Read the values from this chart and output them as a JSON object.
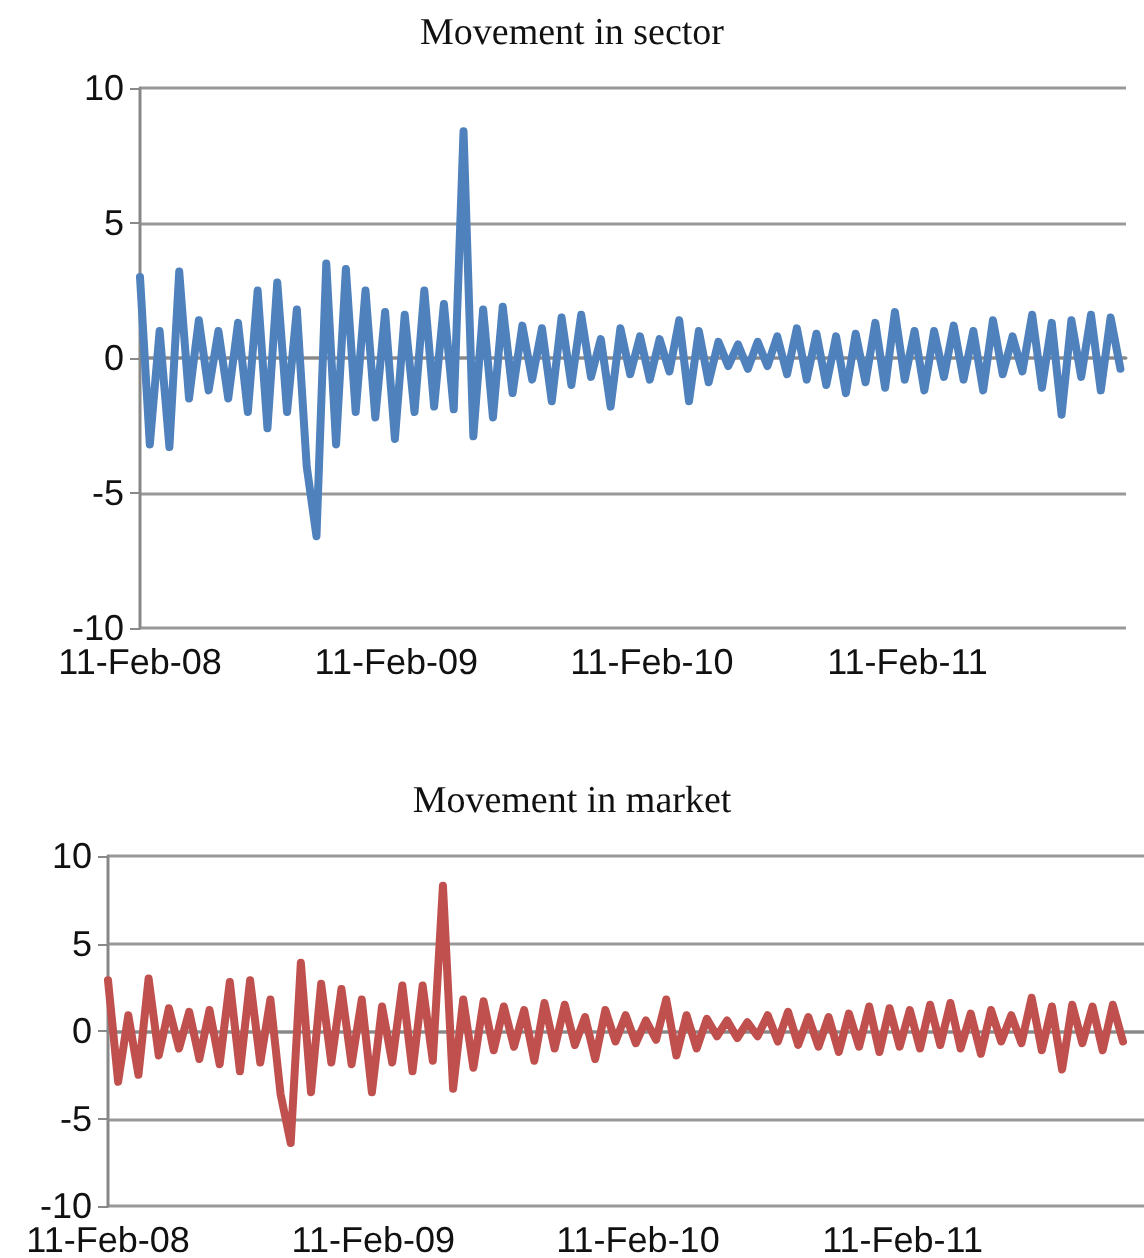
{
  "chart_data": [
    {
      "type": "line",
      "title": "Movement in sector",
      "color": "#4f81bd",
      "marker": "none",
      "grid": "y",
      "xlim": [
        "2008-02-11",
        "2011-12-20"
      ],
      "xticks": [
        {
          "value": "2008-02-11",
          "label": "11-Feb-08"
        },
        {
          "value": "2009-02-11",
          "label": "11-Feb-09"
        },
        {
          "value": "2010-02-11",
          "label": "11-Feb-10"
        },
        {
          "value": "2011-02-11",
          "label": "11-Feb-11"
        }
      ],
      "ylim": [
        -10,
        10
      ],
      "yticks": [
        -10,
        -5,
        0,
        5,
        10
      ],
      "x": [
        "2008-02-11",
        "2008-02-25",
        "2008-03-10",
        "2008-03-24",
        "2008-04-07",
        "2008-04-21",
        "2008-05-05",
        "2008-05-19",
        "2008-06-02",
        "2008-06-16",
        "2008-06-30",
        "2008-07-14",
        "2008-07-28",
        "2008-08-11",
        "2008-08-25",
        "2008-09-08",
        "2008-09-22",
        "2008-10-06",
        "2008-10-20",
        "2008-11-03",
        "2008-11-17",
        "2008-12-01",
        "2008-12-15",
        "2008-12-29",
        "2009-01-12",
        "2009-01-26",
        "2009-02-09",
        "2009-02-23",
        "2009-03-09",
        "2009-03-23",
        "2009-04-06",
        "2009-04-20",
        "2009-05-04",
        "2009-05-18",
        "2009-06-01",
        "2009-06-15",
        "2009-06-29",
        "2009-07-13",
        "2009-07-27",
        "2009-08-10",
        "2009-08-24",
        "2009-09-07",
        "2009-09-21",
        "2009-10-05",
        "2009-10-19",
        "2009-11-02",
        "2009-11-16",
        "2009-11-30",
        "2009-12-14",
        "2009-12-28",
        "2010-01-11",
        "2010-01-25",
        "2010-02-08",
        "2010-02-22",
        "2010-03-08",
        "2010-03-22",
        "2010-04-05",
        "2010-04-19",
        "2010-05-03",
        "2010-05-17",
        "2010-05-31",
        "2010-06-14",
        "2010-06-28",
        "2010-07-12",
        "2010-07-26",
        "2010-08-09",
        "2010-08-23",
        "2010-09-06",
        "2010-09-20",
        "2010-10-04",
        "2010-10-18",
        "2010-11-01",
        "2010-11-15",
        "2010-11-29",
        "2010-12-13",
        "2010-12-27",
        "2011-01-10",
        "2011-01-24",
        "2011-02-07",
        "2011-02-21",
        "2011-03-07",
        "2011-03-21",
        "2011-04-04",
        "2011-04-18",
        "2011-05-02",
        "2011-05-16",
        "2011-05-30",
        "2011-06-13",
        "2011-06-27",
        "2011-07-11",
        "2011-07-25",
        "2011-08-08",
        "2011-08-22",
        "2011-09-05",
        "2011-09-19",
        "2011-10-03",
        "2011-10-17",
        "2011-10-31",
        "2011-11-14",
        "2011-11-28",
        "2011-12-12"
      ],
      "values": [
        3.0,
        -3.2,
        1.0,
        -3.3,
        3.2,
        -1.5,
        1.4,
        -1.2,
        1.0,
        -1.5,
        1.3,
        -2.0,
        2.5,
        -2.6,
        2.8,
        -2.0,
        1.8,
        -4.0,
        -6.6,
        3.5,
        -3.2,
        3.3,
        -2.0,
        2.5,
        -2.2,
        1.7,
        -3.0,
        1.6,
        -2.0,
        2.5,
        -1.8,
        2.0,
        -1.9,
        8.4,
        -2.9,
        1.8,
        -2.2,
        1.9,
        -1.3,
        1.2,
        -0.8,
        1.1,
        -1.6,
        1.5,
        -1.0,
        1.6,
        -0.7,
        0.7,
        -1.8,
        1.1,
        -0.6,
        0.8,
        -0.8,
        0.7,
        -0.5,
        1.4,
        -1.6,
        1.0,
        -0.9,
        0.6,
        -0.3,
        0.5,
        -0.4,
        0.6,
        -0.3,
        0.8,
        -0.6,
        1.1,
        -0.8,
        0.9,
        -1.0,
        0.8,
        -1.3,
        0.9,
        -0.9,
        1.3,
        -1.1,
        1.7,
        -0.8,
        1.0,
        -1.2,
        1.0,
        -0.7,
        1.2,
        -0.8,
        1.0,
        -1.2,
        1.4,
        -0.6,
        0.8,
        -0.5,
        1.6,
        -1.1,
        1.3,
        -2.1,
        1.4,
        -0.7,
        1.6,
        -1.2,
        1.5,
        -0.4
      ]
    },
    {
      "type": "line",
      "title": "Movement in market",
      "color": "#c0504d",
      "marker": "none",
      "grid": "y",
      "xlim": [
        "2008-02-11",
        "2012-01-10"
      ],
      "xticks": [
        {
          "value": "2008-02-11",
          "label": "11-Feb-08"
        },
        {
          "value": "2009-02-11",
          "label": "11-Feb-09"
        },
        {
          "value": "2010-02-11",
          "label": "11-Feb-10"
        },
        {
          "value": "2011-02-11",
          "label": "11-Feb-11"
        }
      ],
      "ylim": [
        -10,
        10
      ],
      "yticks": [
        -10,
        -5,
        0,
        5,
        10
      ],
      "x": [
        "2008-02-11",
        "2008-02-25",
        "2008-03-10",
        "2008-03-24",
        "2008-04-07",
        "2008-04-21",
        "2008-05-05",
        "2008-05-19",
        "2008-06-02",
        "2008-06-16",
        "2008-06-30",
        "2008-07-14",
        "2008-07-28",
        "2008-08-11",
        "2008-08-25",
        "2008-09-08",
        "2008-09-22",
        "2008-10-06",
        "2008-10-20",
        "2008-11-03",
        "2008-11-17",
        "2008-12-01",
        "2008-12-15",
        "2008-12-29",
        "2009-01-12",
        "2009-01-26",
        "2009-02-09",
        "2009-02-23",
        "2009-03-09",
        "2009-03-23",
        "2009-04-06",
        "2009-04-20",
        "2009-05-04",
        "2009-05-18",
        "2009-06-01",
        "2009-06-15",
        "2009-06-29",
        "2009-07-13",
        "2009-07-27",
        "2009-08-10",
        "2009-08-24",
        "2009-09-07",
        "2009-09-21",
        "2009-10-05",
        "2009-10-19",
        "2009-11-02",
        "2009-11-16",
        "2009-11-30",
        "2009-12-14",
        "2009-12-28",
        "2010-01-11",
        "2010-01-25",
        "2010-02-08",
        "2010-02-22",
        "2010-03-08",
        "2010-03-22",
        "2010-04-05",
        "2010-04-19",
        "2010-05-03",
        "2010-05-17",
        "2010-05-31",
        "2010-06-14",
        "2010-06-28",
        "2010-07-12",
        "2010-07-26",
        "2010-08-09",
        "2010-08-23",
        "2010-09-06",
        "2010-09-20",
        "2010-10-04",
        "2010-10-18",
        "2010-11-01",
        "2010-11-15",
        "2010-11-29",
        "2010-12-13",
        "2010-12-27",
        "2011-01-10",
        "2011-01-24",
        "2011-02-07",
        "2011-02-21",
        "2011-03-07",
        "2011-03-21",
        "2011-04-04",
        "2011-04-18",
        "2011-05-02",
        "2011-05-16",
        "2011-05-30",
        "2011-06-13",
        "2011-06-27",
        "2011-07-11",
        "2011-07-25",
        "2011-08-08",
        "2011-08-22",
        "2011-09-05",
        "2011-09-19",
        "2011-10-03",
        "2011-10-17",
        "2011-10-31",
        "2011-11-14",
        "2011-11-28",
        "2011-12-12"
      ],
      "values": [
        2.9,
        -2.9,
        0.9,
        -2.5,
        3.0,
        -1.4,
        1.3,
        -1.0,
        1.1,
        -1.6,
        1.2,
        -1.9,
        2.8,
        -2.3,
        2.9,
        -1.8,
        1.8,
        -3.6,
        -6.4,
        3.9,
        -3.5,
        2.7,
        -1.8,
        2.4,
        -1.9,
        1.8,
        -3.5,
        1.4,
        -1.8,
        2.6,
        -2.3,
        2.6,
        -1.7,
        8.3,
        -3.3,
        1.8,
        -2.1,
        1.7,
        -1.1,
        1.4,
        -0.9,
        1.2,
        -1.7,
        1.6,
        -1.0,
        1.5,
        -0.8,
        0.8,
        -1.6,
        1.2,
        -0.6,
        0.9,
        -0.7,
        0.6,
        -0.5,
        1.8,
        -1.4,
        0.9,
        -1.0,
        0.7,
        -0.3,
        0.6,
        -0.4,
        0.5,
        -0.3,
        0.9,
        -0.6,
        1.1,
        -0.8,
        0.8,
        -0.9,
        0.8,
        -1.2,
        1.0,
        -0.9,
        1.4,
        -1.2,
        1.3,
        -0.9,
        1.2,
        -1.0,
        1.5,
        -0.8,
        1.6,
        -1.0,
        1.0,
        -1.3,
        1.2,
        -0.6,
        0.9,
        -0.7,
        1.9,
        -1.1,
        1.4,
        -2.2,
        1.5,
        -0.7,
        1.4,
        -1.1,
        1.5,
        -0.6
      ]
    }
  ]
}
